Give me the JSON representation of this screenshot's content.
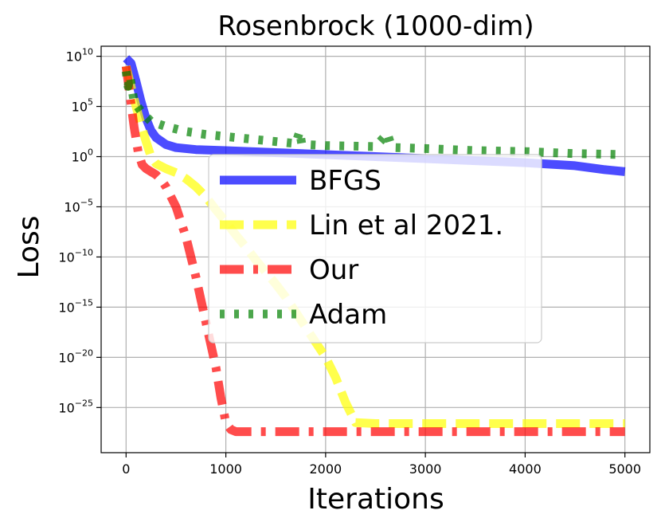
{
  "chart_data": {
    "type": "line",
    "title": "Rosenbrock (1000-dim)",
    "xlabel": "Iterations",
    "ylabel": "Loss",
    "yscale": "log",
    "xlim": [
      -250,
      5250
    ],
    "ylim_log10": [
      -29.5,
      11
    ],
    "xticks": [
      0,
      1000,
      2000,
      3000,
      4000,
      5000
    ],
    "yticks_log10": [
      10,
      5,
      0,
      -5,
      -10,
      -15,
      -20,
      -25
    ],
    "grid": true,
    "legend": {
      "placement": "center",
      "entries": [
        "BFGS",
        "Lin et al 2021.",
        "Our",
        "Adam"
      ]
    },
    "series": [
      {
        "name": "BFGS",
        "color": "#0000ff",
        "linestyle": "solid",
        "x": [
          0,
          50,
          100,
          150,
          200,
          250,
          300,
          400,
          500,
          700,
          1000,
          1500,
          2000,
          2500,
          3000,
          3500,
          4000,
          4500,
          4800,
          5000
        ],
        "log10_y": [
          9.8,
          9.3,
          7.5,
          5.5,
          3.8,
          2.6,
          1.9,
          1.2,
          0.9,
          0.7,
          0.6,
          0.4,
          0.2,
          0.0,
          -0.2,
          -0.4,
          -0.6,
          -0.9,
          -1.3,
          -1.5
        ]
      },
      {
        "name": "Lin et al 2021.",
        "color": "#ffff00",
        "linestyle": "dashed",
        "x": [
          0,
          50,
          100,
          150,
          200,
          250,
          300,
          400,
          500,
          600,
          700,
          800,
          900,
          1000,
          1100,
          1200,
          1300,
          1400,
          1500,
          1600,
          1700,
          1800,
          1900,
          2000,
          2100,
          2200,
          2300,
          2500,
          3000,
          3500,
          4000,
          4500,
          5000
        ],
        "log10_y": [
          9.0,
          7.0,
          5.0,
          3.2,
          1.5,
          0.0,
          -0.7,
          -1.2,
          -1.6,
          -2.2,
          -3.0,
          -4.0,
          -5.3,
          -6.5,
          -7.8,
          -9.0,
          -10.3,
          -11.5,
          -12.7,
          -14.0,
          -15.5,
          -17.0,
          -18.5,
          -20.0,
          -22.0,
          -24.5,
          -26.5,
          -26.6,
          -26.6,
          -26.6,
          -26.6,
          -26.6,
          -26.6
        ]
      },
      {
        "name": "Our",
        "color": "#ff0000",
        "linestyle": "dashdot",
        "x": [
          0,
          40,
          80,
          120,
          160,
          200,
          250,
          300,
          350,
          400,
          450,
          500,
          600,
          700,
          800,
          900,
          950,
          1000,
          1050,
          1100,
          1500,
          2000,
          2500,
          3000,
          3500,
          4000,
          4500,
          5000
        ],
        "log10_y": [
          9.0,
          6.0,
          3.0,
          0.5,
          -0.8,
          -1.2,
          -1.5,
          -1.8,
          -2.3,
          -3.0,
          -4.0,
          -5.0,
          -8.0,
          -12.0,
          -16.5,
          -21.0,
          -24.0,
          -26.5,
          -27.2,
          -27.4,
          -27.4,
          -27.4,
          -27.4,
          -27.4,
          -27.4,
          -27.4,
          -27.4,
          -27.4
        ]
      },
      {
        "name": "Adam",
        "color": "#008000",
        "linestyle": "dotted",
        "x": [
          0,
          20,
          40,
          80,
          150,
          250,
          400,
          600,
          800,
          1000,
          1200,
          1500,
          1700,
          1740,
          1760,
          1800,
          2000,
          2500,
          2620,
          2660,
          2700,
          3000,
          3500,
          4000,
          4500,
          5000
        ],
        "log10_y": [
          8.5,
          7.0,
          8.0,
          5.5,
          4.5,
          3.5,
          3.0,
          2.5,
          2.2,
          2.0,
          1.8,
          1.5,
          1.3,
          2.5,
          1.3,
          1.2,
          1.1,
          1.0,
          2.3,
          1.0,
          0.9,
          0.8,
          0.6,
          0.5,
          0.3,
          0.2
        ]
      }
    ]
  }
}
